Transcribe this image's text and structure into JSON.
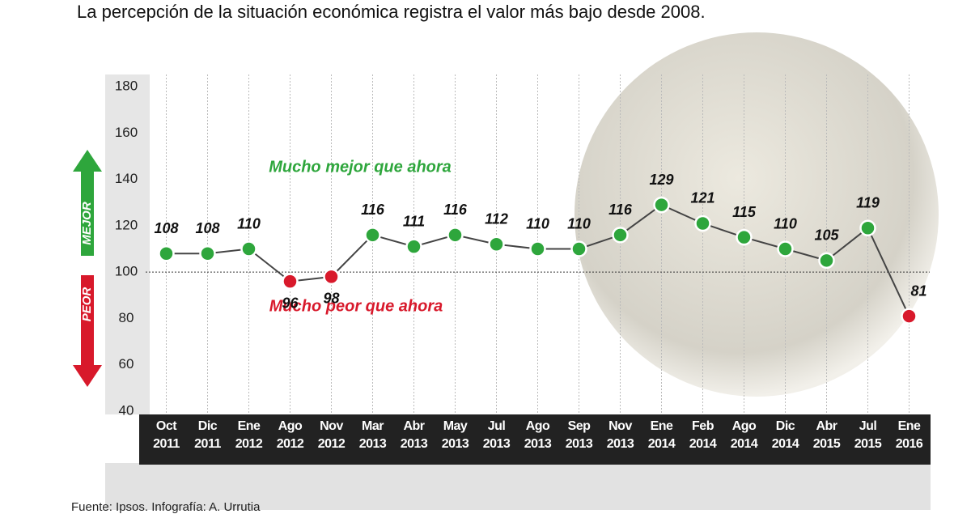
{
  "chart_data": {
    "type": "line",
    "title": "La percepción de la situación económica registra el valor más bajo desde 2008.",
    "categories": [
      "Oct 2011",
      "Dic 2011",
      "Ene 2012",
      "Ago 2012",
      "Nov 2012",
      "Mar 2013",
      "Abr 2013",
      "May 2013",
      "Jul 2013",
      "Ago 2013",
      "Sep 2013",
      "Nov 2013",
      "Ene 2014",
      "Feb 2014",
      "Ago 2014",
      "Dic 2014",
      "Abr 2015",
      "Jul 2015",
      "Ene 2016"
    ],
    "values": [
      108,
      108,
      110,
      96,
      98,
      116,
      111,
      116,
      112,
      110,
      110,
      116,
      129,
      121,
      115,
      110,
      105,
      119,
      81
    ],
    "ylim": [
      40,
      180
    ],
    "yticks": [
      40,
      60,
      80,
      100,
      120,
      140,
      160,
      180
    ],
    "threshold": 100,
    "colors": {
      "above": "#2ea63c",
      "below": "#d8192b",
      "line": "#444444"
    },
    "annotations": [
      {
        "text": "Mucho mejor que ahora",
        "color": "#2ea63c"
      },
      {
        "text": "Mucho peor que ahora",
        "color": "#d8192b"
      }
    ],
    "arrow_labels": [
      "MEJOR",
      "PEOR"
    ],
    "source": "Fuente: Ipsos. Infografía: A. Urrutia"
  }
}
